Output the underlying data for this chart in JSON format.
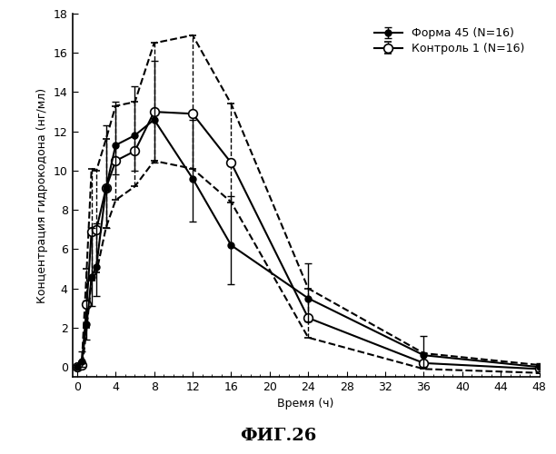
{
  "title": "ФИГ.26",
  "xlabel": "Время (ч)",
  "ylabel": "Концентрация гидрокодона (нг/мл)",
  "xlim": [
    -0.5,
    48
  ],
  "ylim": [
    -0.5,
    18
  ],
  "xticks": [
    0,
    4,
    8,
    12,
    16,
    20,
    24,
    28,
    32,
    36,
    40,
    44,
    48
  ],
  "yticks": [
    0,
    2,
    4,
    6,
    8,
    10,
    12,
    14,
    16,
    18
  ],
  "series1_label": "Форма 45 (N=16)",
  "series1_x": [
    0,
    0.5,
    1,
    1.5,
    2,
    3,
    4,
    6,
    8,
    12,
    16,
    24,
    36,
    48
  ],
  "series1_y": [
    0,
    0.3,
    2.2,
    4.6,
    5.1,
    9.1,
    11.3,
    11.8,
    12.6,
    9.6,
    6.2,
    3.5,
    0.6,
    0.0
  ],
  "series1_yerr_upper": [
    0,
    0.5,
    1.2,
    2.5,
    2.2,
    3.2,
    2.2,
    2.5,
    3.0,
    3.0,
    2.5,
    1.8,
    1.0,
    0.2
  ],
  "series1_yerr_lower": [
    0,
    0.3,
    0.8,
    1.5,
    1.5,
    2.0,
    1.5,
    1.8,
    2.2,
    2.2,
    2.0,
    1.2,
    0.6,
    0.2
  ],
  "series1_color": "#000000",
  "series1_markerfill": "#000000",
  "series2_label": "Контроль 1 (N=16)",
  "series2_x": [
    0,
    0.5,
    1,
    1.5,
    2,
    3,
    4,
    6,
    8,
    12,
    16,
    24,
    36,
    48
  ],
  "series2_y": [
    0,
    0.1,
    3.2,
    6.9,
    7.0,
    9.1,
    10.5,
    11.0,
    13.0,
    12.9,
    10.4,
    2.5,
    0.2,
    -0.1
  ],
  "series2_yerr_upper": [
    0,
    0.2,
    1.8,
    3.2,
    3.0,
    2.5,
    2.8,
    2.5,
    3.5,
    4.0,
    3.0,
    1.5,
    0.5,
    0.2
  ],
  "series2_yerr_lower": [
    0,
    0.2,
    1.2,
    2.5,
    2.2,
    2.0,
    2.0,
    1.8,
    2.5,
    2.8,
    2.0,
    1.0,
    0.3,
    0.2
  ],
  "series2_color": "#000000",
  "series2_markerfill": "#ffffff",
  "background_color": "#ffffff",
  "figure_title_fontsize": 14,
  "axis_label_fontsize": 9,
  "tick_fontsize": 9,
  "legend_fontsize": 9
}
